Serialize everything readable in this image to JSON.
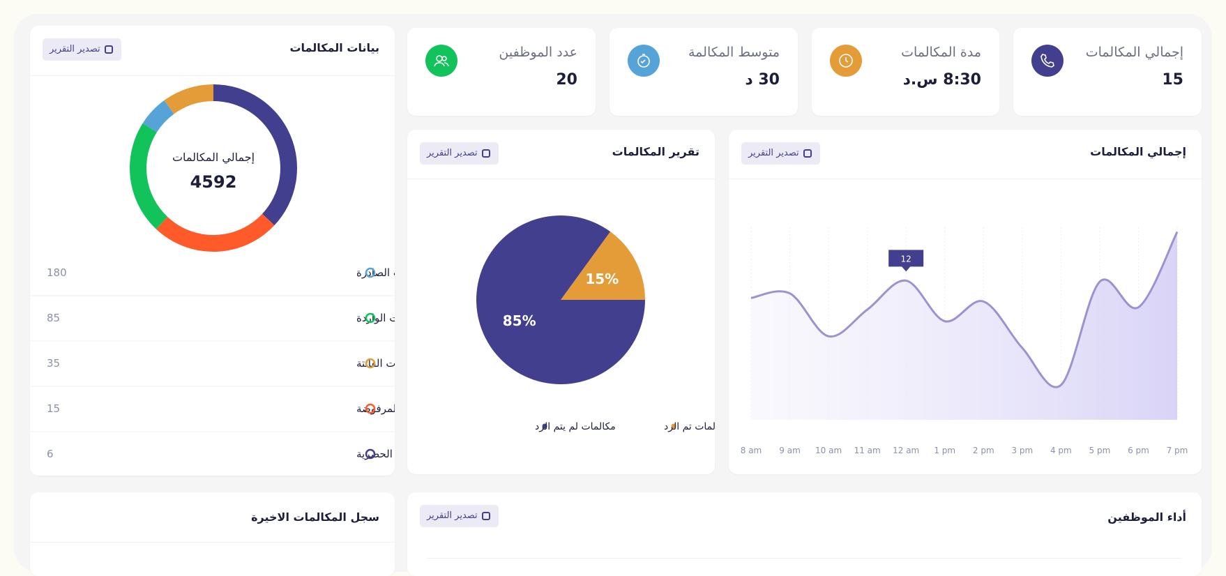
{
  "stats": [
    {
      "label": "إجمالي المكالمات",
      "value": 15
    },
    {
      "label": "مدة المكالمات",
      "value": "8:30 س.د"
    },
    {
      "label": "متوسط المكالمة",
      "value": "30 د"
    },
    {
      "label": "عدد الموظفين",
      "value": 20
    }
  ],
  "calls_panel": {
    "title": "بيانات المكالمات",
    "export": "تصدير التقرير",
    "rows": [
      {
        "label": "المكالمات الصادرة",
        "value": 180
      },
      {
        "label": "المكالمات الواردة",
        "value": 85
      },
      {
        "label": "المكالمات الفائتة",
        "value": 35
      },
      {
        "label": "المكالمات المرفوضة",
        "value": 15
      },
      {
        "label": "المكالمات الحصرية",
        "value": 6
      }
    ]
  },
  "chart_data": [
    {
      "type": "donut",
      "center_label": "إجمالي المكالمات",
      "center_value": 4592,
      "values": [
        37,
        25,
        22,
        6,
        10
      ],
      "colors": [
        "#433f8f",
        "#ff5a2a",
        "#12c35c",
        "#56a3d8",
        "#e39c38"
      ]
    },
    {
      "type": "pie",
      "title": "تقرير المكالمات",
      "export": "تصدير التقرير",
      "categories": [
        "مكالمات تم الرد",
        "مكالمات لم يتم الرد"
      ],
      "values": [
        15,
        85
      ],
      "value_labels": [
        "15%",
        "85%"
      ],
      "colors": [
        "#e39c38",
        "#433f8f"
      ]
    },
    {
      "type": "line",
      "title": "إجمالي المكالمات",
      "export": "تصدير التقرير",
      "categories": [
        "8 am",
        "9 am",
        "10 am",
        "11 am",
        "12 am",
        "1 pm",
        "2 pm",
        "3 pm",
        "4 pm",
        "5 pm",
        "6 pm",
        "7 pm"
      ],
      "values": [
        10.5,
        10.9,
        7.2,
        9.5,
        12,
        8.5,
        10.2,
        6.2,
        3,
        11.9,
        9.7,
        16.2
      ],
      "ylim": [
        0,
        19
      ],
      "color": "#9a93cf",
      "tooltip_index": 4
    }
  ],
  "recent_calls": {
    "title": "سجل المكالمات الاخيرة"
  },
  "performance": {
    "title": "أداء الموظفين",
    "export": "تصدير التقرير"
  }
}
